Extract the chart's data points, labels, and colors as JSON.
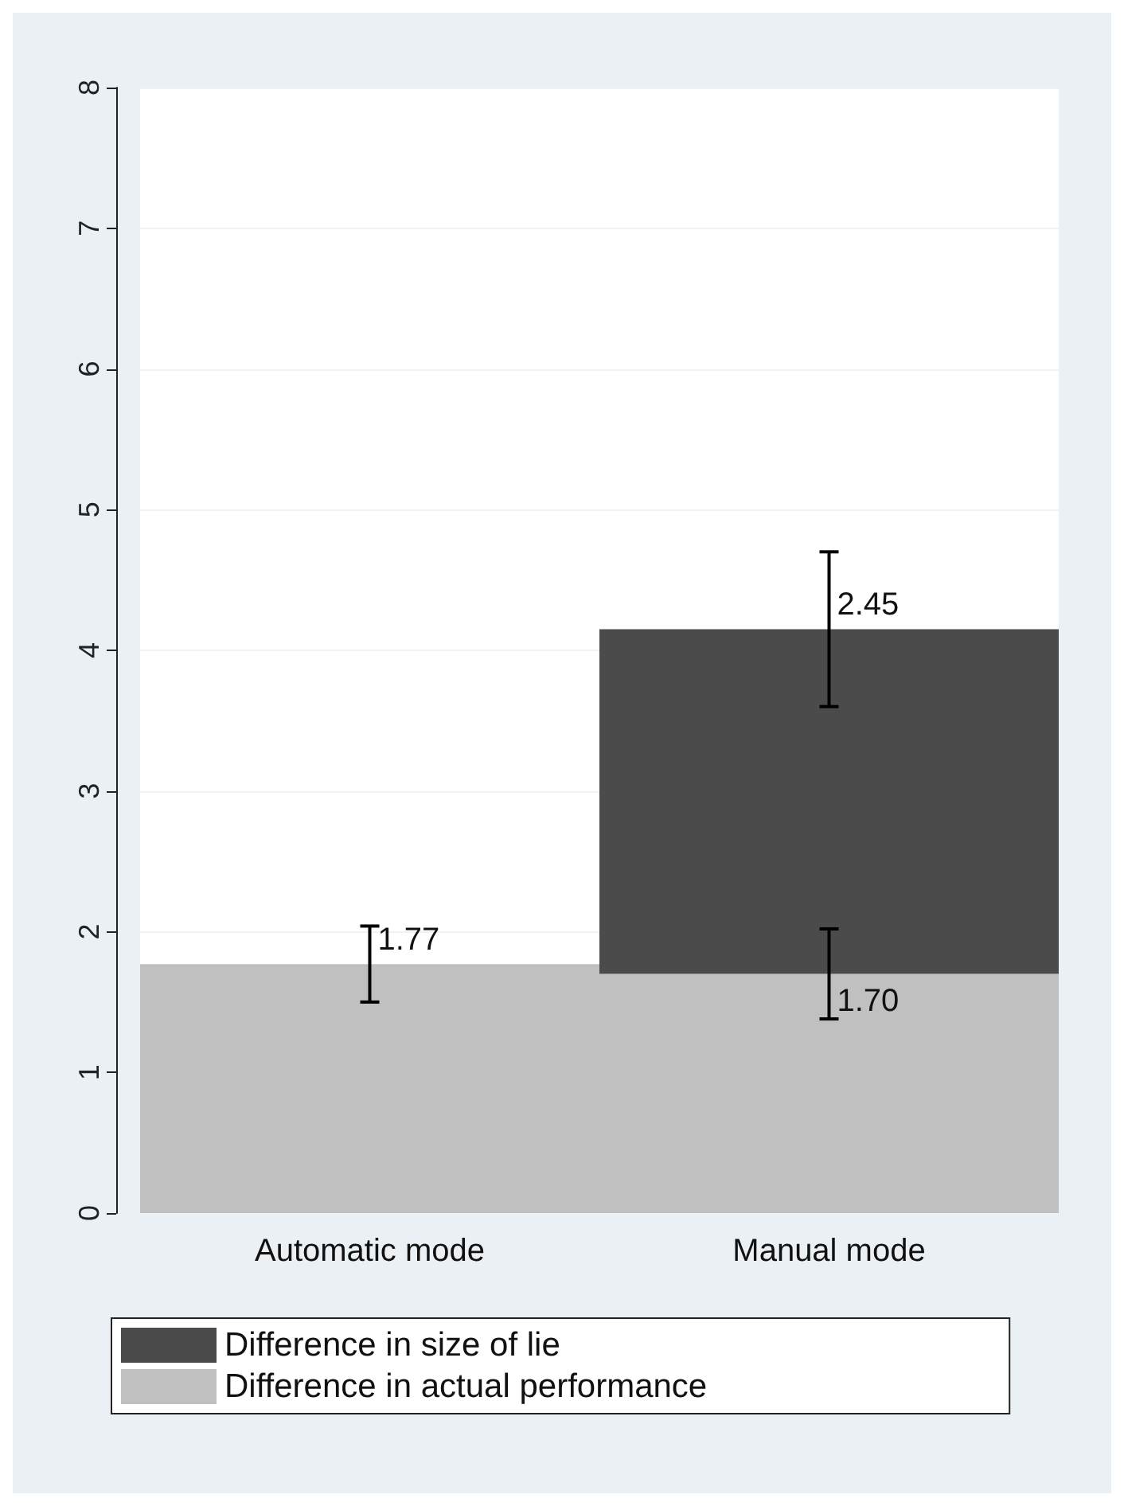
{
  "chart_data": {
    "type": "bar",
    "stacked": true,
    "categories": [
      "Automatic mode",
      "Manual mode"
    ],
    "series": [
      {
        "name": "Difference in actual performance",
        "color": "#c0c0c0",
        "values": [
          1.77,
          1.7
        ],
        "errors": [
          0.27,
          0.32
        ],
        "value_labels": [
          "1.77",
          "1.70"
        ]
      },
      {
        "name": "Difference in size of lie",
        "color": "#4b4b4b",
        "values": [
          null,
          2.45
        ],
        "errors": [
          null,
          0.55
        ],
        "value_labels": [
          null,
          "2.45"
        ]
      }
    ],
    "ylim": [
      0,
      8
    ],
    "yticks": [
      0,
      1,
      2,
      3,
      4,
      5,
      6,
      7,
      8
    ],
    "grid": "y",
    "legend": "bottom"
  }
}
